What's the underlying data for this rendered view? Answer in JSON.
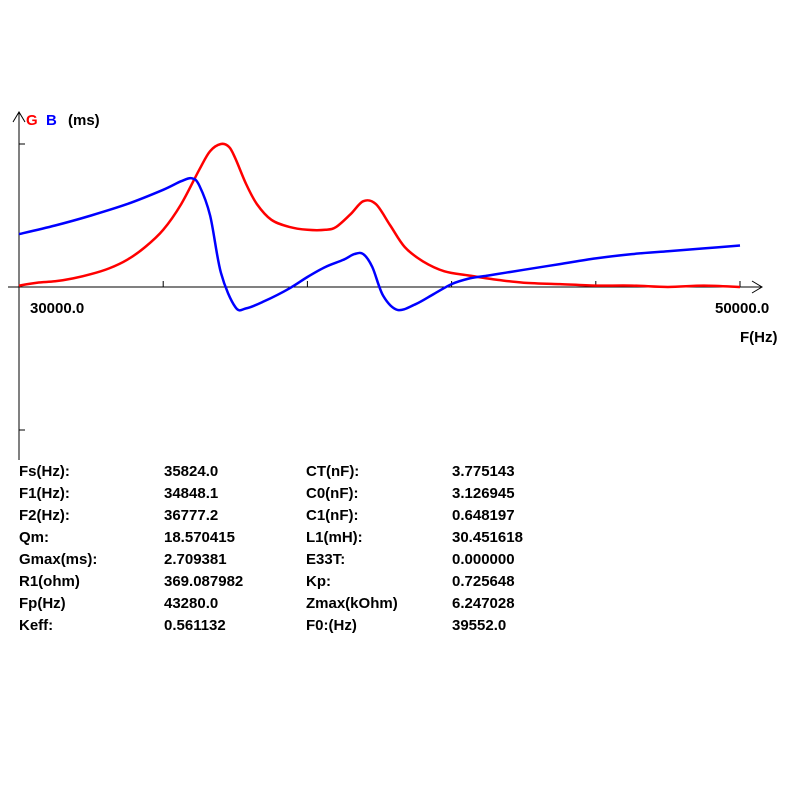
{
  "chart_data": {
    "type": "line",
    "ylabel_g": "G",
    "ylabel_b": "B",
    "yunit": "(ms)",
    "xlabel": "F(Hz)",
    "x_min_label": "30000.0",
    "x_max_label": "50000.0",
    "xlim": [
      30000,
      50000
    ],
    "ylim": [
      -1.0,
      1.0
    ],
    "x_ticks": [
      30000,
      34000,
      38000,
      42000,
      46000,
      50000
    ],
    "y_ticks": [
      -1.0,
      1.0
    ],
    "grid": false,
    "colors": {
      "G": "#ff0000",
      "B": "#0000ff"
    },
    "series": [
      {
        "name": "G",
        "x": [
          30000,
          30500,
          31000,
          31500,
          32000,
          32500,
          33000,
          33500,
          34000,
          34500,
          35000,
          35300,
          35600,
          35824,
          36000,
          36300,
          36600,
          37000,
          37500,
          38000,
          38500,
          38800,
          39200,
          39552,
          39900,
          40300,
          40700,
          41200,
          41800,
          42500,
          43280,
          44000,
          45000,
          46000,
          47000,
          48000,
          49000,
          50000
        ],
        "y": [
          0.01,
          0.03,
          0.04,
          0.06,
          0.09,
          0.13,
          0.19,
          0.28,
          0.4,
          0.58,
          0.82,
          0.95,
          1.0,
          0.98,
          0.9,
          0.72,
          0.58,
          0.47,
          0.42,
          0.4,
          0.4,
          0.42,
          0.51,
          0.6,
          0.58,
          0.43,
          0.28,
          0.18,
          0.11,
          0.08,
          0.05,
          0.03,
          0.02,
          0.01,
          0.01,
          0.0,
          0.01,
          0.0
        ]
      },
      {
        "name": "B",
        "x": [
          30000,
          31000,
          32000,
          33000,
          34000,
          34500,
          34800,
          35000,
          35300,
          35600,
          36000,
          36300,
          36800,
          37500,
          38000,
          38500,
          39000,
          39300,
          39552,
          39800,
          40100,
          40500,
          41000,
          41500,
          42000,
          42500,
          43000,
          43500,
          44000,
          45000,
          46000,
          47000,
          48000,
          49000,
          50000
        ],
        "y": [
          0.37,
          0.43,
          0.5,
          0.58,
          0.68,
          0.74,
          0.76,
          0.71,
          0.5,
          0.1,
          -0.14,
          -0.15,
          -0.1,
          -0.01,
          0.07,
          0.14,
          0.19,
          0.23,
          0.23,
          0.14,
          -0.06,
          -0.16,
          -0.12,
          -0.05,
          0.02,
          0.06,
          0.08,
          0.1,
          0.12,
          0.16,
          0.2,
          0.23,
          0.25,
          0.27,
          0.29
        ]
      }
    ]
  },
  "parameters": {
    "rows": [
      {
        "label_left": "Fs(Hz):",
        "value_left": "35824.0",
        "label_right": "CT(nF):",
        "value_right": "3.775143"
      },
      {
        "label_left": "F1(Hz):",
        "value_left": "34848.1",
        "label_right": "C0(nF):",
        "value_right": "3.126945"
      },
      {
        "label_left": "F2(Hz):",
        "value_left": "36777.2",
        "label_right": "C1(nF):",
        "value_right": "0.648197"
      },
      {
        "label_left": "Qm:",
        "value_left": "18.570415",
        "label_right": "L1(mH):",
        "value_right": "30.451618"
      },
      {
        "label_left": "Gmax(ms):",
        "value_left": "2.709381",
        "label_right": "E33T:",
        "value_right": "0.000000"
      },
      {
        "label_left": "R1(ohm)",
        "value_left": "369.087982",
        "label_right": "Kp:",
        "value_right": "0.725648"
      },
      {
        "label_left": "Fp(Hz)",
        "value_left": "43280.0",
        "label_right": "Zmax(kOhm)",
        "value_right": "6.247028"
      },
      {
        "label_left": "Keff:",
        "value_left": "0.561132",
        "label_right": "F0:(Hz)",
        "value_right": "39552.0"
      }
    ]
  }
}
